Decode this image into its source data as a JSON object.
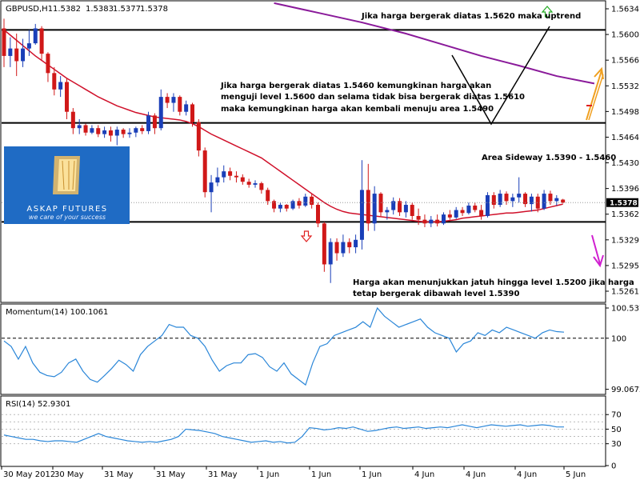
{
  "chart_data": {
    "type": "candlestick",
    "header": {
      "symbol_label": "GBPUSD,H1",
      "ohlc": [
        "1.5382",
        "1.5383",
        "1.5377",
        "1.5378"
      ]
    },
    "price_axis": {
      "ylim": [
        1.5245,
        1.5648
      ],
      "ticks": [
        "1.5634",
        "1.5600",
        "1.5566",
        "1.5532",
        "1.5498",
        "1.5464",
        "1.5430",
        "1.5396",
        "1.5362",
        "1.5329",
        "1.5295",
        "1.5261"
      ],
      "current_price_label": "1.5378",
      "current_price": 1.5378
    },
    "x_ticks": [
      "30 May 2012",
      "30 May",
      "31 May",
      "31 May",
      "31 May",
      "1 Jun",
      "1 Jun",
      "1 Jun",
      "4 Jun",
      "4 Jun",
      "4 Jun",
      "5 Jun"
    ],
    "levels": [
      {
        "name": "resistance",
        "value": 1.561
      },
      {
        "name": "middle",
        "value": 1.5485
      },
      {
        "name": "support",
        "value": 1.5352
      }
    ],
    "candles": [
      {
        "x": 0,
        "open": 1.5612,
        "high": 1.5625,
        "low": 1.556,
        "close": 1.5575
      },
      {
        "x": 1,
        "open": 1.5575,
        "high": 1.56,
        "low": 1.556,
        "close": 1.5585
      },
      {
        "x": 2,
        "open": 1.5585,
        "high": 1.5605,
        "low": 1.5548,
        "close": 1.5568
      },
      {
        "x": 3,
        "open": 1.5568,
        "high": 1.5598,
        "low": 1.556,
        "close": 1.5585
      },
      {
        "x": 4,
        "open": 1.5585,
        "high": 1.561,
        "low": 1.5575,
        "close": 1.5592
      },
      {
        "x": 5,
        "open": 1.5592,
        "high": 1.5618,
        "low": 1.559,
        "close": 1.5612
      },
      {
        "x": 6,
        "open": 1.5612,
        "high": 1.5615,
        "low": 1.557,
        "close": 1.5578
      },
      {
        "x": 7,
        "open": 1.5578,
        "high": 1.558,
        "low": 1.554,
        "close": 1.5552
      },
      {
        "x": 8,
        "open": 1.5552,
        "high": 1.556,
        "low": 1.5522,
        "close": 1.553
      },
      {
        "x": 9,
        "open": 1.553,
        "high": 1.5548,
        "low": 1.552,
        "close": 1.554
      },
      {
        "x": 10,
        "open": 1.554,
        "high": 1.5545,
        "low": 1.549,
        "close": 1.55
      },
      {
        "x": 11,
        "open": 1.55,
        "high": 1.5505,
        "low": 1.547,
        "close": 1.5478
      },
      {
        "x": 12,
        "open": 1.5478,
        "high": 1.549,
        "low": 1.547,
        "close": 1.5482
      },
      {
        "x": 13,
        "open": 1.5482,
        "high": 1.5484,
        "low": 1.5468,
        "close": 1.5472
      },
      {
        "x": 14,
        "open": 1.5472,
        "high": 1.5482,
        "low": 1.547,
        "close": 1.5478
      },
      {
        "x": 15,
        "open": 1.5478,
        "high": 1.5482,
        "low": 1.5466,
        "close": 1.547
      },
      {
        "x": 16,
        "open": 1.547,
        "high": 1.548,
        "low": 1.5465,
        "close": 1.5475
      },
      {
        "x": 17,
        "open": 1.5475,
        "high": 1.548,
        "low": 1.546,
        "close": 1.5468
      },
      {
        "x": 18,
        "open": 1.5468,
        "high": 1.548,
        "low": 1.5455,
        "close": 1.5476
      },
      {
        "x": 19,
        "open": 1.5476,
        "high": 1.5478,
        "low": 1.5465,
        "close": 1.547
      },
      {
        "x": 20,
        "open": 1.547,
        "high": 1.5478,
        "low": 1.5465,
        "close": 1.5472
      },
      {
        "x": 21,
        "open": 1.5472,
        "high": 1.548,
        "low": 1.5466,
        "close": 1.5478
      },
      {
        "x": 22,
        "open": 1.5478,
        "high": 1.5482,
        "low": 1.547,
        "close": 1.5474
      },
      {
        "x": 23,
        "open": 1.5474,
        "high": 1.55,
        "low": 1.547,
        "close": 1.5495
      },
      {
        "x": 24,
        "open": 1.5495,
        "high": 1.5498,
        "low": 1.547,
        "close": 1.5478
      },
      {
        "x": 25,
        "open": 1.5478,
        "high": 1.553,
        "low": 1.5475,
        "close": 1.552
      },
      {
        "x": 26,
        "open": 1.552,
        "high": 1.5525,
        "low": 1.5505,
        "close": 1.5512
      },
      {
        "x": 27,
        "open": 1.5512,
        "high": 1.5525,
        "low": 1.55,
        "close": 1.552
      },
      {
        "x": 28,
        "open": 1.552,
        "high": 1.5522,
        "low": 1.5495,
        "close": 1.55
      },
      {
        "x": 29,
        "open": 1.55,
        "high": 1.5515,
        "low": 1.5495,
        "close": 1.551
      },
      {
        "x": 30,
        "open": 1.551,
        "high": 1.5512,
        "low": 1.548,
        "close": 1.5486
      },
      {
        "x": 31,
        "open": 1.5486,
        "high": 1.549,
        "low": 1.544,
        "close": 1.5448
      },
      {
        "x": 32,
        "open": 1.5448,
        "high": 1.5452,
        "low": 1.5385,
        "close": 1.5392
      },
      {
        "x": 33,
        "open": 1.5392,
        "high": 1.5415,
        "low": 1.5365,
        "close": 1.5405
      },
      {
        "x": 34,
        "open": 1.5405,
        "high": 1.5425,
        "low": 1.54,
        "close": 1.5412
      },
      {
        "x": 35,
        "open": 1.5412,
        "high": 1.5428,
        "low": 1.5405,
        "close": 1.542
      },
      {
        "x": 36,
        "open": 1.542,
        "high": 1.5425,
        "low": 1.5408,
        "close": 1.5414
      },
      {
        "x": 37,
        "open": 1.5414,
        "high": 1.542,
        "low": 1.5405,
        "close": 1.5412
      },
      {
        "x": 38,
        "open": 1.5412,
        "high": 1.5416,
        "low": 1.5402,
        "close": 1.5406
      },
      {
        "x": 39,
        "open": 1.5406,
        "high": 1.541,
        "low": 1.5398,
        "close": 1.5402
      },
      {
        "x": 40,
        "open": 1.5402,
        "high": 1.5408,
        "low": 1.5398,
        "close": 1.5404
      },
      {
        "x": 41,
        "open": 1.5404,
        "high": 1.5406,
        "low": 1.539,
        "close": 1.5395
      },
      {
        "x": 42,
        "open": 1.5395,
        "high": 1.5398,
        "low": 1.5375,
        "close": 1.538
      },
      {
        "x": 43,
        "open": 1.538,
        "high": 1.5382,
        "low": 1.5365,
        "close": 1.537
      },
      {
        "x": 44,
        "open": 1.537,
        "high": 1.5378,
        "low": 1.5365,
        "close": 1.5375
      },
      {
        "x": 45,
        "open": 1.5375,
        "high": 1.5376,
        "low": 1.5366,
        "close": 1.537
      },
      {
        "x": 46,
        "open": 1.537,
        "high": 1.5382,
        "low": 1.5368,
        "close": 1.538
      },
      {
        "x": 47,
        "open": 1.538,
        "high": 1.5384,
        "low": 1.537,
        "close": 1.5374
      },
      {
        "x": 48,
        "open": 1.5374,
        "high": 1.539,
        "low": 1.5372,
        "close": 1.5386
      },
      {
        "x": 49,
        "open": 1.5386,
        "high": 1.539,
        "low": 1.537,
        "close": 1.5375
      },
      {
        "x": 50,
        "open": 1.5375,
        "high": 1.5378,
        "low": 1.5345,
        "close": 1.535
      },
      {
        "x": 51,
        "open": 1.535,
        "high": 1.5352,
        "low": 1.5285,
        "close": 1.5295
      },
      {
        "x": 52,
        "open": 1.5295,
        "high": 1.533,
        "low": 1.527,
        "close": 1.5325
      },
      {
        "x": 53,
        "open": 1.5325,
        "high": 1.533,
        "low": 1.53,
        "close": 1.531
      },
      {
        "x": 54,
        "open": 1.531,
        "high": 1.5335,
        "low": 1.5305,
        "close": 1.5325
      },
      {
        "x": 55,
        "open": 1.5325,
        "high": 1.533,
        "low": 1.531,
        "close": 1.5318
      },
      {
        "x": 56,
        "open": 1.5318,
        "high": 1.5335,
        "low": 1.531,
        "close": 1.5328
      },
      {
        "x": 57,
        "open": 1.5328,
        "high": 1.5435,
        "low": 1.5315,
        "close": 1.5395
      },
      {
        "x": 58,
        "open": 1.5395,
        "high": 1.543,
        "low": 1.534,
        "close": 1.535
      },
      {
        "x": 59,
        "open": 1.535,
        "high": 1.54,
        "low": 1.534,
        "close": 1.539
      },
      {
        "x": 60,
        "open": 1.539,
        "high": 1.5392,
        "low": 1.536,
        "close": 1.5365
      },
      {
        "x": 61,
        "open": 1.5365,
        "high": 1.5372,
        "low": 1.5355,
        "close": 1.5368
      },
      {
        "x": 62,
        "open": 1.5368,
        "high": 1.5385,
        "low": 1.5362,
        "close": 1.538
      },
      {
        "x": 63,
        "open": 1.538,
        "high": 1.5384,
        "low": 1.536,
        "close": 1.5365
      },
      {
        "x": 64,
        "open": 1.5365,
        "high": 1.538,
        "low": 1.5358,
        "close": 1.5375
      },
      {
        "x": 65,
        "open": 1.5375,
        "high": 1.5378,
        "low": 1.5355,
        "close": 1.536
      },
      {
        "x": 66,
        "open": 1.536,
        "high": 1.537,
        "low": 1.5348,
        "close": 1.5355
      },
      {
        "x": 67,
        "open": 1.5355,
        "high": 1.5362,
        "low": 1.5345,
        "close": 1.535
      },
      {
        "x": 68,
        "open": 1.535,
        "high": 1.536,
        "low": 1.5345,
        "close": 1.5355
      },
      {
        "x": 69,
        "open": 1.5355,
        "high": 1.5362,
        "low": 1.5346,
        "close": 1.535
      },
      {
        "x": 70,
        "open": 1.535,
        "high": 1.5365,
        "low": 1.5348,
        "close": 1.5362
      },
      {
        "x": 71,
        "open": 1.5362,
        "high": 1.5368,
        "low": 1.5355,
        "close": 1.5358
      },
      {
        "x": 72,
        "open": 1.5358,
        "high": 1.5372,
        "low": 1.5356,
        "close": 1.5368
      },
      {
        "x": 73,
        "open": 1.5368,
        "high": 1.5372,
        "low": 1.536,
        "close": 1.5364
      },
      {
        "x": 74,
        "open": 1.5364,
        "high": 1.5378,
        "low": 1.5362,
        "close": 1.5374
      },
      {
        "x": 75,
        "open": 1.5374,
        "high": 1.5378,
        "low": 1.5365,
        "close": 1.5368
      },
      {
        "x": 76,
        "open": 1.5368,
        "high": 1.5375,
        "low": 1.5355,
        "close": 1.536
      },
      {
        "x": 77,
        "open": 1.536,
        "high": 1.5392,
        "low": 1.5358,
        "close": 1.5388
      },
      {
        "x": 78,
        "open": 1.5388,
        "high": 1.5392,
        "low": 1.537,
        "close": 1.5375
      },
      {
        "x": 79,
        "open": 1.5375,
        "high": 1.5395,
        "low": 1.5372,
        "close": 1.539
      },
      {
        "x": 80,
        "open": 1.539,
        "high": 1.5393,
        "low": 1.5375,
        "close": 1.538
      },
      {
        "x": 81,
        "open": 1.538,
        "high": 1.539,
        "low": 1.5372,
        "close": 1.5385
      },
      {
        "x": 82,
        "open": 1.5385,
        "high": 1.5412,
        "low": 1.5378,
        "close": 1.539
      },
      {
        "x": 83,
        "open": 1.539,
        "high": 1.5392,
        "low": 1.5372,
        "close": 1.5376
      },
      {
        "x": 84,
        "open": 1.5376,
        "high": 1.539,
        "low": 1.5366,
        "close": 1.5386
      },
      {
        "x": 85,
        "open": 1.5386,
        "high": 1.539,
        "low": 1.5365,
        "close": 1.537
      },
      {
        "x": 86,
        "open": 1.537,
        "high": 1.5395,
        "low": 1.5368,
        "close": 1.539
      },
      {
        "x": 87,
        "open": 1.539,
        "high": 1.5394,
        "low": 1.5375,
        "close": 1.538
      },
      {
        "x": 88,
        "open": 1.538,
        "high": 1.5388,
        "low": 1.5374,
        "close": 1.5384
      },
      {
        "x": 89,
        "open": 1.5382,
        "high": 1.5383,
        "low": 1.5377,
        "close": 1.5378
      }
    ],
    "ma_red": [
      1.561,
      1.5603,
      1.5596,
      1.5589,
      1.5582,
      1.5575,
      1.5569,
      1.5563,
      1.5557,
      1.5551,
      1.5545,
      1.554,
      1.5535,
      1.553,
      1.5525,
      1.552,
      1.5516,
      1.5512,
      1.5508,
      1.5505,
      1.5502,
      1.5499,
      1.5497,
      1.5495,
      1.5493,
      1.5492,
      1.5491,
      1.549,
      1.5489,
      1.5487,
      1.5484,
      1.548,
      1.5475,
      1.547,
      1.5466,
      1.5462,
      1.5458,
      1.5454,
      1.545,
      1.5446,
      1.5442,
      1.5438,
      1.5432,
      1.5426,
      1.542,
      1.5414,
      1.5408,
      1.5402,
      1.5396,
      1.539,
      1.5384,
      1.5378,
      1.5373,
      1.5369,
      1.5366,
      1.5364,
      1.5363,
      1.5362,
      1.5361,
      1.536,
      1.5359,
      1.5358,
      1.5357,
      1.5356,
      1.5355,
      1.5354,
      1.5353,
      1.5352,
      1.5352,
      1.5352,
      1.5353,
      1.5354,
      1.5355,
      1.5357,
      1.5358,
      1.5359,
      1.536,
      1.5361,
      1.5362,
      1.5363,
      1.5364,
      1.5364,
      1.5365,
      1.5366,
      1.5367,
      1.5368,
      1.537,
      1.5372,
      1.5374,
      1.5376
    ],
    "ma_purple": [
      {
        "x": 43,
        "y": 1.5646
      },
      {
        "x": 50,
        "y": 1.5633
      },
      {
        "x": 57,
        "y": 1.562
      },
      {
        "x": 64,
        "y": 1.5605
      },
      {
        "x": 70,
        "y": 1.559
      },
      {
        "x": 76,
        "y": 1.5575
      },
      {
        "x": 82,
        "y": 1.5562
      },
      {
        "x": 88,
        "y": 1.5548
      },
      {
        "x": 94,
        "y": 1.5538
      }
    ],
    "annotations": [
      "Jika harga bergerak diatas 1.5620 maka uptrend",
      "Jika harga bergerak diatas 1.5460 kemungkinan harga akan",
      "menguji level 1.5600 dan selama tidak bisa bergerak diatas 1.5610",
      "maka kemungkinan harga akan kembali menuju area 1.5490",
      "Area Sideway 1.5390 - 1.5460",
      "Harga akan menunjukkan jatuh hingga level 1.5200 jika harga",
      "tetap bergerak dibawah level 1.5390"
    ],
    "logo": {
      "brand": "ASKAP FUTURES",
      "tagline": "we care of your success"
    },
    "momentum": {
      "label": "Momentum(14) 100.1061",
      "ticks": [
        "100.5373",
        "100",
        "99.0672"
      ],
      "ylim": [
        99.05,
        100.55
      ],
      "reference": 100,
      "values": [
        99.95,
        99.85,
        99.62,
        99.85,
        99.55,
        99.38,
        99.32,
        99.3,
        99.38,
        99.55,
        99.62,
        99.4,
        99.25,
        99.2,
        99.32,
        99.45,
        99.6,
        99.52,
        99.4,
        99.7,
        99.85,
        99.95,
        100.05,
        100.25,
        100.2,
        100.2,
        100.05,
        100.0,
        99.85,
        99.6,
        99.4,
        99.5,
        99.55,
        99.55,
        99.7,
        99.72,
        99.65,
        99.48,
        99.4,
        99.55,
        99.35,
        99.25,
        99.15,
        99.55,
        99.85,
        99.9,
        100.05,
        100.1,
        100.15,
        100.2,
        100.3,
        100.2,
        100.55,
        100.4,
        100.3,
        100.2,
        100.25,
        100.3,
        100.35,
        100.2,
        100.1,
        100.05,
        100.0,
        99.75,
        99.9,
        99.95,
        100.1,
        100.05,
        100.15,
        100.1,
        100.2,
        100.15,
        100.1,
        100.05,
        100.0,
        100.1,
        100.15,
        100.12,
        100.11
      ]
    },
    "rsi": {
      "label": "RSI(14) 52.9301",
      "ticks": [
        "70",
        "50",
        "30",
        "0"
      ],
      "grid_levels": [
        70,
        60,
        50,
        40,
        30
      ],
      "ylim": [
        0,
        90
      ],
      "values": [
        42,
        40,
        38,
        36,
        36,
        34,
        33,
        34,
        34,
        33,
        32,
        36,
        40,
        44,
        40,
        38,
        36,
        34,
        33,
        32,
        33,
        32,
        34,
        36,
        40,
        50,
        49,
        48,
        46,
        44,
        40,
        38,
        36,
        34,
        32,
        33,
        34,
        32,
        33,
        31,
        32,
        40,
        52,
        51,
        49,
        50,
        52,
        51,
        53,
        50,
        47,
        48,
        50,
        52,
        53,
        51,
        52,
        53,
        51,
        52,
        53,
        52,
        54,
        56,
        54,
        52,
        54,
        56,
        55,
        54,
        55,
        56,
        54,
        55,
        56,
        55,
        53,
        53
      ]
    }
  }
}
